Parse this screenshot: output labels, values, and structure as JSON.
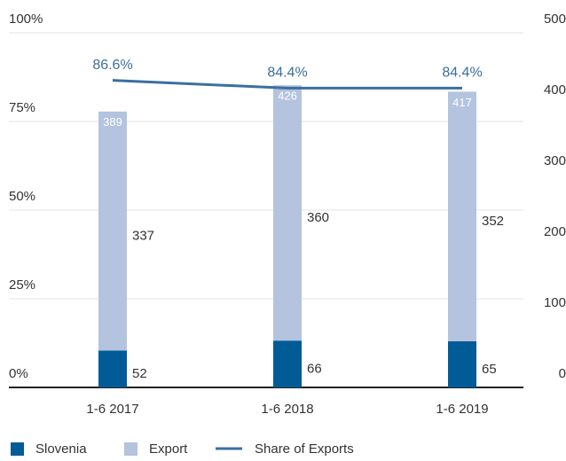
{
  "chart_data": {
    "type": "bar",
    "stacked": true,
    "categories": [
      "1-6 2017",
      "1-6 2018",
      "1-6 2019"
    ],
    "series": [
      {
        "name": "Slovenia",
        "color": "#005b96",
        "axis": "y2",
        "values": [
          52,
          66,
          65
        ]
      },
      {
        "name": "Export",
        "color": "#b4c3de",
        "axis": "y2",
        "values": [
          337,
          360,
          352
        ]
      },
      {
        "name": "Share of Exports",
        "type": "line",
        "color": "#3b6fa0",
        "values": [
          86.6,
          84.4,
          84.4
        ],
        "value_labels": [
          "86.6%",
          "84.4%",
          "84.4%"
        ]
      }
    ],
    "totals": [
      389,
      426,
      417
    ],
    "ylim": [
      0,
      100
    ],
    "yticks": [
      {
        "value": 0,
        "label": "0%"
      },
      {
        "value": 25,
        "label": "25%"
      },
      {
        "value": 50,
        "label": "50%"
      },
      {
        "value": 75,
        "label": "75%"
      },
      {
        "value": 100,
        "label": "100%"
      }
    ],
    "y2lim": [
      0,
      500
    ],
    "y2ticks": [
      0,
      100,
      200,
      300,
      400,
      500
    ],
    "grid": true,
    "legend": "bottom"
  }
}
